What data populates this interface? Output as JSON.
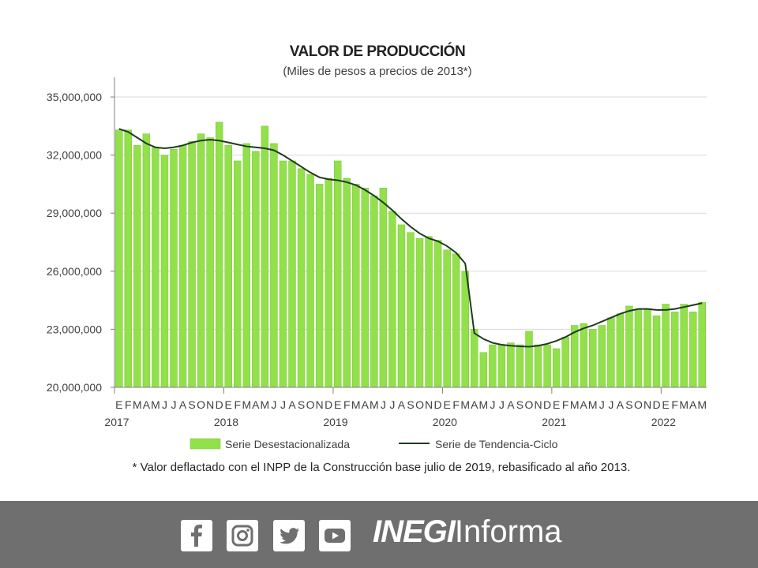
{
  "chart_data": {
    "type": "bar",
    "title": "VALOR DE PRODUCCIÓN",
    "subtitle": "(Miles de pesos a precios de 2013*)",
    "ylim": [
      20000000,
      35000000
    ],
    "yticks": [
      "20,000,000",
      "23,000,000",
      "26,000,000",
      "29,000,000",
      "32,000,000",
      "35,000,000"
    ],
    "ytick_values": [
      20000000,
      23000000,
      26000000,
      29000000,
      32000000,
      35000000
    ],
    "x_month_labels": [
      "E",
      "F",
      "M",
      "A",
      "M",
      "J",
      "J",
      "A",
      "S",
      "O",
      "N",
      "D",
      "E",
      "F",
      "M",
      "A",
      "M",
      "J",
      "J",
      "A",
      "S",
      "O",
      "N",
      "D",
      "E",
      "F",
      "M",
      "A",
      "M",
      "J",
      "J",
      "A",
      "S",
      "O",
      "N",
      "D",
      "E",
      "F",
      "M",
      "A",
      "M",
      "J",
      "J",
      "A",
      "S",
      "O",
      "N",
      "D",
      "E",
      "F",
      "M",
      "A",
      "M",
      "J",
      "J",
      "A",
      "S",
      "O",
      "N",
      "D",
      "E",
      "F",
      "M",
      "A",
      "M"
    ],
    "x_year_labels": [
      {
        "label": "2017",
        "index": 0
      },
      {
        "label": "2018",
        "index": 12
      },
      {
        "label": "2019",
        "index": 24
      },
      {
        "label": "2020",
        "index": 36
      },
      {
        "label": "2021",
        "index": 48
      },
      {
        "label": "2022",
        "index": 60
      }
    ],
    "grid": true,
    "legend_position": "bottom",
    "series": [
      {
        "name": "Serie Desestacionalizada",
        "kind": "bar",
        "color": "#92e04a",
        "values": [
          33300000,
          33300000,
          32500000,
          33100000,
          32400000,
          32000000,
          32300000,
          32500000,
          32700000,
          33100000,
          32900000,
          33700000,
          32500000,
          31700000,
          32600000,
          32200000,
          33500000,
          32600000,
          31700000,
          31700000,
          31300000,
          31000000,
          30500000,
          30800000,
          31700000,
          30800000,
          30500000,
          30300000,
          29900000,
          30300000,
          29100000,
          28400000,
          28000000,
          27700000,
          27800000,
          27600000,
          27100000,
          26900000,
          26000000,
          23000000,
          21800000,
          22200000,
          22200000,
          22300000,
          22200000,
          22900000,
          22200000,
          22200000,
          22000000,
          22600000,
          23200000,
          23300000,
          23000000,
          23200000,
          23600000,
          23800000,
          24200000,
          24000000,
          24000000,
          23700000,
          24300000,
          23900000,
          24300000,
          23900000,
          24400000
        ]
      },
      {
        "name": "Serie de Tendencia-Ciclo",
        "kind": "line",
        "color": "#1f3a1f",
        "values": [
          33350000,
          33200000,
          32900000,
          32600000,
          32400000,
          32350000,
          32400000,
          32500000,
          32650000,
          32750000,
          32800000,
          32750000,
          32650000,
          32550000,
          32450000,
          32400000,
          32350000,
          32250000,
          32000000,
          31700000,
          31400000,
          31100000,
          30850000,
          30750000,
          30700000,
          30600000,
          30450000,
          30200000,
          29900000,
          29550000,
          29150000,
          28700000,
          28300000,
          27950000,
          27700000,
          27550000,
          27300000,
          26950000,
          26400000,
          22800000,
          22500000,
          22300000,
          22200000,
          22150000,
          22120000,
          22100000,
          22150000,
          22250000,
          22400000,
          22600000,
          22850000,
          23050000,
          23200000,
          23400000,
          23600000,
          23800000,
          23950000,
          24050000,
          24050000,
          24000000,
          24000000,
          24050000,
          24150000,
          24250000,
          24350000
        ]
      }
    ],
    "footnote": "* Valor deflactado con el INPP de la Construcción base julio de 2019, rebasificado al año 2013."
  },
  "footer": {
    "background": "#6f6f6f",
    "social_icons": [
      "facebook-icon",
      "instagram-icon",
      "twitter-icon",
      "youtube-icon"
    ],
    "brand_bold": "INEGI",
    "brand_light": "Informa"
  }
}
